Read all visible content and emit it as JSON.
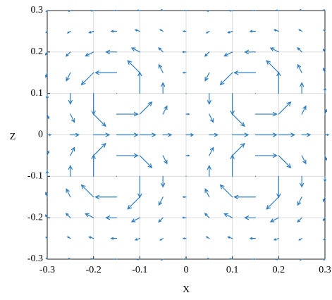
{
  "chart_data": {
    "type": "quiver",
    "xlabel": "X",
    "ylabel": "Z",
    "color": "#2f7ec0",
    "grid": true,
    "xlim": [
      -0.3,
      0.3
    ],
    "ylim": [
      -0.3,
      0.3
    ],
    "xticks": [
      -0.3,
      -0.2,
      -0.1,
      0,
      0.1,
      0.2,
      0.3
    ],
    "yticks": [
      -0.3,
      -0.2,
      -0.1,
      0,
      0.1,
      0.2,
      0.3
    ],
    "x": [
      -0.3,
      -0.25,
      -0.2,
      -0.15,
      -0.1,
      -0.05,
      0,
      0.05,
      0.1,
      0.15,
      0.2,
      0.25,
      0.3
    ],
    "y": [
      -0.3,
      -0.25,
      -0.2,
      -0.15,
      -0.1,
      -0.05,
      0,
      0.05,
      0.1,
      0.15,
      0.2,
      0.25,
      0.3
    ],
    "u": [
      [
        -0.05,
        -0.07,
        -0.1,
        -0.1,
        -0.1,
        -0.07,
        -0.1,
        -0.07,
        -0.1,
        -0.1,
        -0.1,
        -0.07,
        -0.05
      ],
      [
        -0.06,
        -0.13,
        -0.21,
        -0.25,
        -0.21,
        -0.13,
        -0.12,
        -0.13,
        -0.21,
        -0.25,
        -0.21,
        -0.13,
        -0.06
      ],
      [
        -0.08,
        -0.2,
        -0.38,
        -0.5,
        -0.38,
        -0.2,
        -0.16,
        -0.2,
        -0.38,
        -0.5,
        -0.38,
        -0.2,
        -0.08
      ],
      [
        -0.07,
        -0.19,
        -0.57,
        -1,
        -0.57,
        -0.19,
        -0.14,
        -0.19,
        -0.57,
        -1,
        -0.57,
        -0.19,
        -0.07
      ],
      [
        0,
        0,
        0,
        0,
        0,
        0,
        0,
        0,
        0,
        0,
        0,
        0,
        0
      ],
      [
        0.07,
        0.19,
        0.57,
        1,
        0.57,
        0.19,
        0.14,
        0.19,
        0.57,
        1,
        0.57,
        0.19,
        0.07
      ],
      [
        0.17,
        0.4,
        0.75,
        1,
        0.75,
        0.4,
        0.34,
        0.4,
        0.75,
        1,
        0.75,
        0.4,
        0.17
      ],
      [
        0.07,
        0.19,
        0.57,
        1,
        0.57,
        0.19,
        0.14,
        0.19,
        0.57,
        1,
        0.57,
        0.19,
        0.07
      ],
      [
        0,
        0,
        0,
        0,
        0,
        0,
        0,
        0,
        0,
        0,
        0,
        0,
        0
      ],
      [
        -0.07,
        -0.19,
        -0.57,
        -1,
        -0.57,
        -0.19,
        -0.14,
        -0.19,
        -0.57,
        -1,
        -0.57,
        -0.19,
        -0.07
      ],
      [
        -0.08,
        -0.2,
        -0.38,
        -0.5,
        -0.38,
        -0.2,
        -0.16,
        -0.2,
        -0.38,
        -0.5,
        -0.38,
        -0.2,
        -0.08
      ],
      [
        -0.06,
        -0.13,
        -0.21,
        -0.25,
        -0.21,
        -0.13,
        -0.12,
        -0.13,
        -0.21,
        -0.25,
        -0.21,
        -0.13,
        -0.06
      ],
      [
        -0.05,
        -0.07,
        -0.1,
        -0.1,
        -0.1,
        -0.07,
        -0.1,
        -0.07,
        -0.1,
        -0.1,
        -0.1,
        -0.07,
        -0.05
      ]
    ],
    "v": [
      [
        0.04,
        0.04,
        0.02,
        0,
        -0.02,
        -0.04,
        0,
        0.04,
        0.02,
        0,
        -0.02,
        -0.04,
        -0.04
      ],
      [
        0.06,
        0.08,
        0.07,
        0,
        -0.07,
        -0.08,
        0,
        0.08,
        0.07,
        0,
        -0.07,
        -0.08,
        -0.06
      ],
      [
        0.13,
        0.2,
        0.19,
        0,
        -0.19,
        -0.2,
        0,
        0.2,
        0.19,
        0,
        -0.19,
        -0.2,
        -0.13
      ],
      [
        0.21,
        0.38,
        0.57,
        0,
        -0.57,
        -0.38,
        0,
        0.38,
        0.57,
        0,
        -0.57,
        -0.38,
        -0.21
      ],
      [
        0.25,
        0.5,
        1,
        0,
        -1,
        -0.5,
        0,
        0.5,
        1,
        0,
        -1,
        -0.5,
        -0.25
      ],
      [
        0.21,
        0.38,
        0.57,
        0,
        -0.57,
        -0.38,
        0,
        0.38,
        0.57,
        0,
        -0.57,
        -0.38,
        -0.21
      ],
      [
        0,
        0,
        0,
        0,
        0,
        0,
        0,
        0,
        0,
        0,
        0,
        0,
        0
      ],
      [
        -0.21,
        -0.38,
        -0.57,
        0,
        0.57,
        0.38,
        0,
        -0.38,
        -0.57,
        0,
        0.57,
        0.38,
        0.21
      ],
      [
        -0.25,
        -0.5,
        -1,
        0,
        1,
        0.5,
        0,
        -0.5,
        -1,
        0,
        1,
        0.5,
        0.25
      ],
      [
        -0.21,
        -0.38,
        -0.57,
        0,
        0.57,
        0.38,
        0,
        -0.38,
        -0.57,
        0,
        0.57,
        0.38,
        0.21
      ],
      [
        -0.13,
        -0.2,
        -0.19,
        0,
        0.19,
        0.2,
        0,
        -0.2,
        -0.19,
        0,
        0.19,
        0.2,
        0.13
      ],
      [
        -0.06,
        -0.08,
        -0.07,
        0,
        0.07,
        0.08,
        0,
        -0.08,
        -0.07,
        0,
        0.07,
        0.08,
        0.06
      ],
      [
        -0.04,
        -0.04,
        -0.02,
        0,
        0.02,
        0.04,
        0,
        -0.04,
        -0.02,
        0,
        0.02,
        0.04,
        0.04
      ]
    ]
  }
}
